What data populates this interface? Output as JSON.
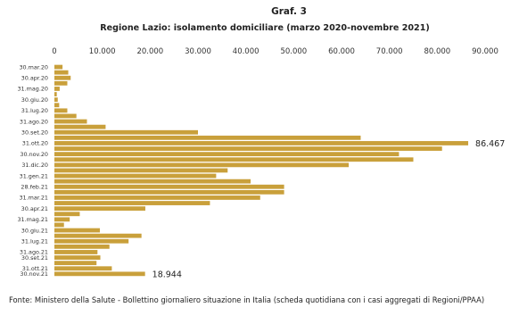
{
  "chart_data": {
    "type": "bar",
    "orientation": "horizontal",
    "graph_number": "Graf. 3",
    "title": "Regione Lazio: isolamento domiciliare (marzo 2020-novembre 2021)",
    "xlim": [
      0,
      90000
    ],
    "x_ticks": [
      0,
      10000,
      20000,
      30000,
      40000,
      50000,
      60000,
      70000,
      80000,
      90000
    ],
    "x_tick_labels": [
      "0",
      "10.000",
      "20.000",
      "30.000",
      "40.000",
      "50.000",
      "60.000",
      "70.000",
      "80.000",
      "90.000"
    ],
    "bar_color": "#c9a03b",
    "gridlines": false,
    "values": [
      1700,
      2900,
      3400,
      2700,
      1100,
      500,
      700,
      1000,
      2700,
      4600,
      6800,
      10700,
      30000,
      64000,
      86467,
      81000,
      72000,
      75000,
      61500,
      36200,
      33800,
      41000,
      48000,
      48000,
      43000,
      32500,
      19000,
      5300,
      3200,
      2000,
      9500,
      18200,
      15500,
      11500,
      9000,
      9600,
      8800,
      12000,
      18944
    ],
    "category_labels": [
      {
        "index": 0,
        "text": "30.mar.20"
      },
      {
        "index": 2,
        "text": "30.apr.20"
      },
      {
        "index": 4,
        "text": "31.mag.20"
      },
      {
        "index": 6,
        "text": "30.giu.20"
      },
      {
        "index": 8,
        "text": "31.lug.20"
      },
      {
        "index": 10,
        "text": "31.ago.20"
      },
      {
        "index": 12,
        "text": "30.set.20"
      },
      {
        "index": 14,
        "text": "31.ott.20"
      },
      {
        "index": 16,
        "text": "30.nov.20"
      },
      {
        "index": 18,
        "text": "31.dic.20"
      },
      {
        "index": 20,
        "text": "31.gen.21"
      },
      {
        "index": 22,
        "text": "28.feb.21"
      },
      {
        "index": 24,
        "text": "31.mar.21"
      },
      {
        "index": 26,
        "text": "30.apr.21"
      },
      {
        "index": 28,
        "text": "31.mag.21"
      },
      {
        "index": 30,
        "text": "30.giu.21"
      },
      {
        "index": 32,
        "text": "31.lug.21"
      },
      {
        "index": 34,
        "text": "31.ago.21"
      },
      {
        "index": 35,
        "text": "30.set.21"
      },
      {
        "index": 37,
        "text": "31.ott.21"
      },
      {
        "index": 38,
        "text": "30.nov.21"
      }
    ],
    "annotations": [
      {
        "index": 14,
        "text": "86.467"
      },
      {
        "index": 38,
        "text": "18.944"
      }
    ],
    "source": "Fonte: Ministero della Salute - Bollettino giornaliero situazione in Italia (scheda quotidiana con i casi aggregati di Regioni/PPAA)"
  }
}
